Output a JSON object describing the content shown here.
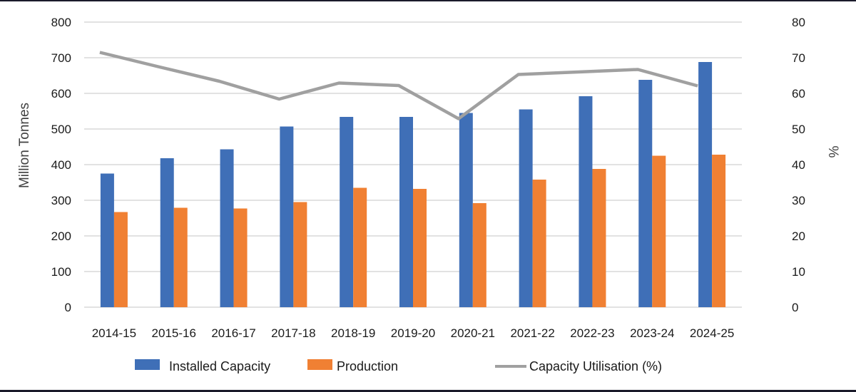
{
  "chart_data": {
    "type": "bar+line",
    "categories": [
      "2014-15",
      "2015-16",
      "2016-17",
      "2017-18",
      "2018-19",
      "2019-20",
      "2020-21",
      "2021-22",
      "2022-23",
      "2023-24",
      "2024-25"
    ],
    "series": [
      {
        "name": "Installed Capacity",
        "type": "bar",
        "axis": "left",
        "color": "#3f6fb7",
        "values": [
          375,
          418,
          443,
          507,
          534,
          534,
          545,
          555,
          592,
          638,
          688
        ]
      },
      {
        "name": "Production",
        "type": "bar",
        "axis": "left",
        "color": "#f08033",
        "values": [
          267,
          279,
          277,
          295,
          335,
          332,
          292,
          358,
          388,
          425,
          428
        ]
      },
      {
        "name": "Capacity Utilisation (%)",
        "type": "line",
        "axis": "right",
        "color": "#a0a0a0",
        "values": [
          71.5,
          67.4,
          63.4,
          58.4,
          62.9,
          62.2,
          52.9,
          65.3,
          66.0,
          66.7,
          62.1
        ]
      }
    ],
    "ylabel": "Million Tonnes",
    "ylim": [
      0,
      800
    ],
    "yticks": [
      "0",
      "100",
      "200",
      "300",
      "400",
      "500",
      "600",
      "700",
      "800"
    ],
    "y2label": "%",
    "y2lim": [
      0,
      80
    ],
    "y2ticks": [
      "0",
      "10",
      "20",
      "30",
      "40",
      "50",
      "60",
      "70",
      "80"
    ],
    "grid": true,
    "legend_position": "bottom"
  }
}
